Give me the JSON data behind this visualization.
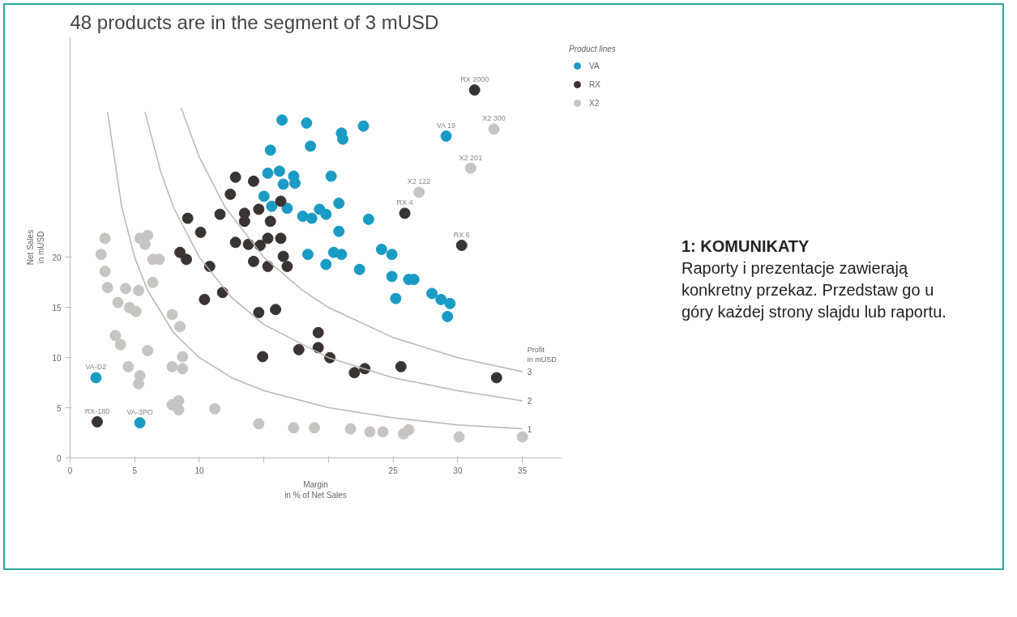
{
  "chart_data": {
    "type": "scatter",
    "title": "48 products are in the segment of 3 mUSD",
    "xlabel": "Margin\nin % of Net Sales",
    "ylabel": "Net Sales\nin mUSD",
    "y2label": "Profit\nin mUSD",
    "legend_title": "Product lines",
    "legend": "right",
    "grid": false,
    "marker": "circle",
    "xlim": [
      0,
      38
    ],
    "ylim": [
      0,
      42
    ],
    "xticks": [
      0,
      5,
      10,
      {
        "value": 15,
        "label": null
      },
      {
        "value": 20,
        "label": null
      },
      25,
      30,
      35
    ],
    "yticks": [
      0,
      5,
      10,
      15,
      20
    ],
    "series": [
      {
        "name": "VA",
        "color": "#1a9bc4",
        "x": [
          16.4,
          18.3,
          22.7,
          21.0,
          21.1,
          18.6,
          15.5,
          29.1,
          20.2,
          15.3,
          16.2,
          17.3,
          16.5,
          17.4,
          15.0,
          15.6,
          16.8,
          20.8,
          18.0,
          18.7,
          19.3,
          19.8,
          20.8,
          23.1,
          18.4,
          19.8,
          20.4,
          21.0,
          22.4,
          24.1,
          24.9,
          24.9,
          25.2,
          26.2,
          26.6,
          28.0,
          28.7,
          29.4,
          29.2,
          2.0,
          5.4
        ],
        "values": [
          33.7,
          33.4,
          33.1,
          32.4,
          31.8,
          31.1,
          30.7,
          32.1,
          28.1,
          28.4,
          28.6,
          28.1,
          27.3,
          27.4,
          26.1,
          25.1,
          24.9,
          25.4,
          24.1,
          23.9,
          24.8,
          24.3,
          22.6,
          23.8,
          20.3,
          19.3,
          20.5,
          20.3,
          18.8,
          20.8,
          20.3,
          18.1,
          15.9,
          17.8,
          17.8,
          16.4,
          15.8,
          15.4,
          14.1,
          8.0,
          3.5
        ]
      },
      {
        "name": "RX",
        "color": "#3a3333",
        "x": [
          31.3,
          25.9,
          30.3,
          33.0,
          25.6,
          22.8,
          22.0,
          20.1,
          19.2,
          19.2,
          17.7,
          14.9,
          14.6,
          15.9,
          14.2,
          14.6,
          15.5,
          16.3,
          14.7,
          15.3,
          16.3,
          14.2,
          15.3,
          16.5,
          16.8,
          12.8,
          12.4,
          11.6,
          13.5,
          13.5,
          9.1,
          10.1,
          12.8,
          13.8,
          8.5,
          9.0,
          10.8,
          10.4,
          11.8,
          2.1
        ],
        "values": [
          36.7,
          24.4,
          21.2,
          8.0,
          9.1,
          8.9,
          8.5,
          10.0,
          12.5,
          11.0,
          10.8,
          10.1,
          14.5,
          14.8,
          27.6,
          24.8,
          23.6,
          25.6,
          21.2,
          21.9,
          21.9,
          19.6,
          19.1,
          20.1,
          19.1,
          28.0,
          26.3,
          24.3,
          24.4,
          23.6,
          23.9,
          22.5,
          21.5,
          21.3,
          20.5,
          19.8,
          19.1,
          15.8,
          16.5,
          3.6
        ]
      },
      {
        "name": "X2",
        "color": "#c8c4c4",
        "x": [
          32.8,
          31.0,
          27.0,
          14.6,
          17.3,
          18.9,
          21.7,
          23.2,
          24.2,
          25.8,
          26.2,
          30.1,
          35.0,
          11.2,
          7.9,
          8.4,
          8.4,
          4.5,
          5.4,
          5.3,
          6.0,
          7.9,
          8.7,
          8.7,
          3.5,
          3.9,
          7.9,
          8.5,
          3.7,
          4.6,
          5.1,
          4.3,
          5.3,
          6.4,
          6.4,
          6.9,
          2.7,
          2.9,
          2.4,
          2.7,
          5.4,
          6.0,
          5.8
        ],
        "values": [
          32.8,
          28.9,
          26.5,
          3.4,
          3.0,
          3.0,
          2.9,
          2.6,
          2.6,
          2.4,
          2.8,
          2.1,
          2.1,
          4.9,
          5.3,
          5.7,
          4.8,
          9.1,
          8.2,
          7.4,
          10.7,
          9.1,
          10.1,
          8.9,
          12.2,
          11.3,
          14.3,
          13.1,
          15.5,
          15.0,
          14.6,
          16.9,
          16.7,
          17.5,
          19.8,
          19.8,
          18.6,
          17.0,
          20.3,
          21.9,
          21.9,
          22.2,
          21.3
        ]
      },
      {
        "type": "line",
        "name": "1",
        "marker": "none",
        "color": "#bdb5b5",
        "x": [
          2.9,
          4,
          5,
          6,
          8,
          10,
          12.5,
          15,
          20,
          25,
          30,
          35
        ],
        "values": [
          34.5,
          25,
          20,
          16.7,
          12.5,
          10,
          8,
          6.7,
          5,
          4,
          3.3,
          2.9
        ]
      },
      {
        "type": "line",
        "name": "2",
        "marker": "none",
        "color": "#bdb5b5",
        "x": [
          5.8,
          7,
          8,
          10,
          12.5,
          15,
          20,
          25,
          30,
          35
        ],
        "values": [
          34.5,
          28.6,
          25,
          20,
          16,
          13.3,
          10,
          8,
          6.7,
          5.7
        ]
      },
      {
        "type": "line",
        "name": "3",
        "marker": "none",
        "color": "#bdb5b5",
        "x": [
          8.6,
          10,
          12,
          15,
          18,
          20,
          25,
          30,
          35
        ],
        "values": [
          34.9,
          30,
          25,
          20,
          16.7,
          15,
          12,
          10,
          8.6
        ]
      }
    ],
    "annotations": [
      {
        "text": "RX 2000",
        "x": 31.3,
        "y": 36.7
      },
      {
        "text": "VA 19",
        "x": 29.1,
        "y": 32.1
      },
      {
        "text": "X2 300",
        "x": 32.8,
        "y": 32.8
      },
      {
        "text": "X2 201",
        "x": 31.0,
        "y": 28.9
      },
      {
        "text": "X2 122",
        "x": 27.0,
        "y": 26.5
      },
      {
        "text": "RX 4",
        "x": 25.9,
        "y": 24.4
      },
      {
        "text": "RX 6",
        "x": 30.3,
        "y": 21.2
      },
      {
        "text": "VA-D2",
        "x": 2.0,
        "y": 8.0
      },
      {
        "text": "RX-180",
        "x": 2.1,
        "y": 3.6
      },
      {
        "text": "VA-3PO",
        "x": 5.4,
        "y": 3.5
      },
      "1: KOMUNIKATY",
      "Raporty i prezentacje zawierają konkretny przekaz. Przedstaw go u góry każdej strony slajdu lub raportu."
    ]
  }
}
